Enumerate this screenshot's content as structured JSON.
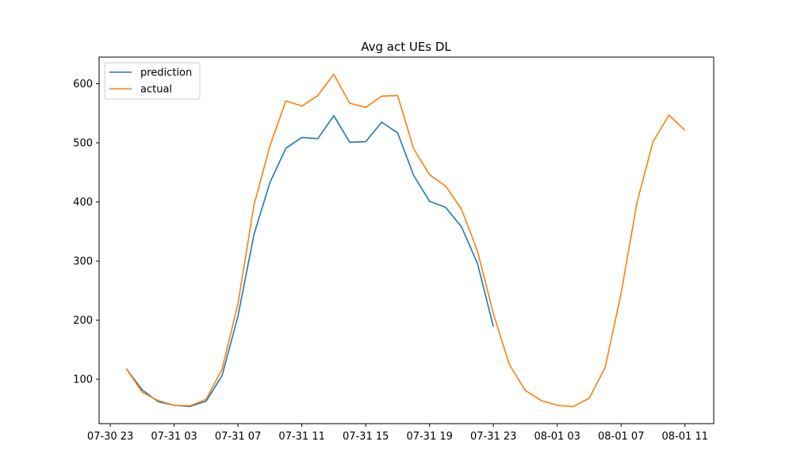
{
  "chart_data": {
    "type": "line",
    "title": "Avg act UEs DL",
    "xlabel": "",
    "ylabel": "",
    "x_ticks": [
      "07-30 23",
      "07-31 03",
      "07-31 07",
      "07-31 11",
      "07-31 15",
      "07-31 19",
      "07-31 23",
      "08-01 03",
      "08-01 07",
      "08-01 11"
    ],
    "y_ticks": [
      100,
      200,
      300,
      400,
      500,
      600
    ],
    "xlim_hours": [
      -0.7,
      37.8
    ],
    "ylim": [
      25,
      645
    ],
    "legend_position": "upper-left",
    "grid": false,
    "series": [
      {
        "name": "prediction",
        "color": "#1f77b4",
        "x_hours": [
          1,
          2,
          3,
          4,
          5,
          6,
          7,
          8,
          9,
          10,
          11,
          12,
          13,
          14,
          15,
          16,
          17,
          18,
          19,
          20,
          21,
          22,
          23,
          24
        ],
        "values": [
          118,
          82,
          62,
          56,
          54,
          63,
          106,
          207,
          345,
          433,
          491,
          509,
          507,
          546,
          501,
          502,
          535,
          517,
          445,
          401,
          391,
          358,
          296,
          189
        ]
      },
      {
        "name": "actual",
        "color": "#ff7f0e",
        "x_hours": [
          1,
          2,
          3,
          4,
          5,
          6,
          7,
          8,
          9,
          10,
          11,
          12,
          13,
          14,
          15,
          16,
          17,
          18,
          19,
          20,
          21,
          22,
          23,
          24,
          25,
          26,
          27,
          28,
          29,
          30,
          31,
          32,
          33,
          34,
          35,
          36,
          37
        ],
        "values": [
          118,
          78,
          64,
          56,
          55,
          66,
          117,
          228,
          395,
          495,
          571,
          562,
          580,
          616,
          567,
          560,
          579,
          580,
          490,
          446,
          427,
          388,
          317,
          211,
          125,
          81,
          64,
          56,
          54,
          68,
          120,
          245,
          400,
          502,
          547,
          521,
          null
        ]
      }
    ]
  }
}
